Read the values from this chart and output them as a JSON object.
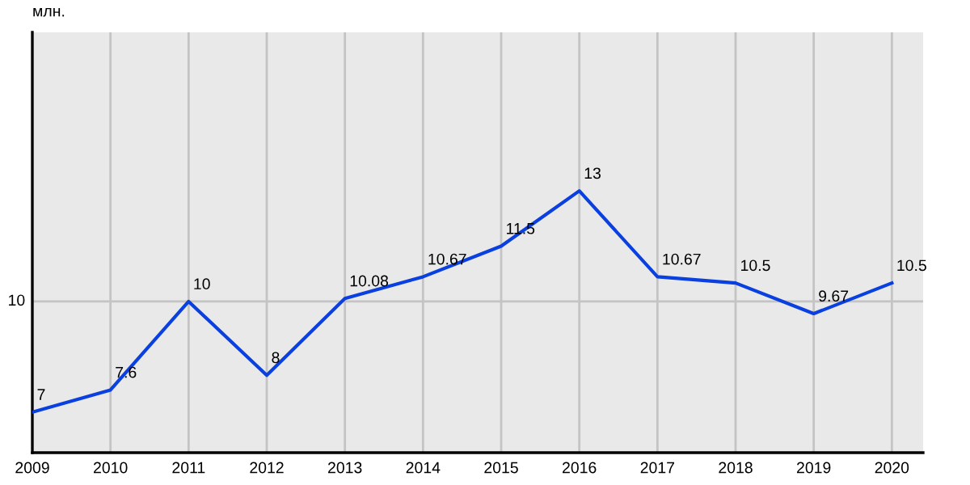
{
  "chart_data": {
    "type": "line",
    "annotations": [
      "млн."
    ],
    "x": [
      2009,
      2010,
      2011,
      2012,
      2013,
      2014,
      2015,
      2016,
      2017,
      2018,
      2019,
      2020
    ],
    "values": [
      7,
      7.6,
      10,
      8,
      10.08,
      10.67,
      11.5,
      13,
      10.67,
      10.5,
      9.67,
      10.5
    ],
    "data_labels": true,
    "color": "#0a3fe0",
    "xlim": [
      2009,
      2020.4
    ],
    "xticks": [
      2009,
      2010,
      2011,
      2012,
      2013,
      2014,
      2015,
      2016,
      2017,
      2018,
      2019,
      2020
    ],
    "ylim": [
      5.9,
      17.3
    ],
    "ref_lines": [
      {
        "axis": "y",
        "value": 10,
        "label": "10",
        "color": "#c4c4c4"
      }
    ],
    "grid": "x",
    "marker": "none",
    "line_style": "solid"
  }
}
